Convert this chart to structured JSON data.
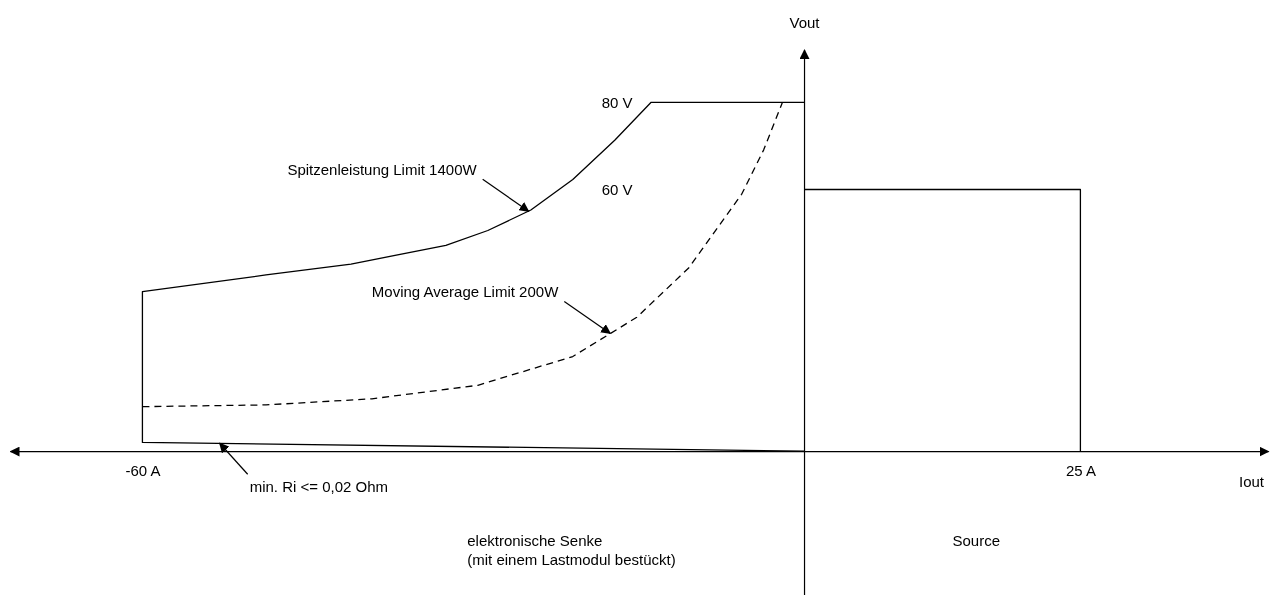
{
  "chart_data": {
    "type": "line",
    "xlabel": "Iout",
    "ylabel": "Vout",
    "xlim": [
      -72,
      42
    ],
    "ylim": [
      -33,
      92
    ],
    "xticks": [
      {
        "value": -60,
        "label": "-60 A"
      },
      {
        "value": 25,
        "label": "25 A"
      }
    ],
    "yticks": [
      {
        "value": 60,
        "label": "60 V"
      },
      {
        "value": 80,
        "label": "80 V"
      }
    ],
    "grid": false,
    "series": [
      {
        "color": "#000000",
        "line_style": "solid",
        "x": [
          0,
          -60,
          -60,
          -48.8,
          -41.1,
          -32.5,
          -28.7,
          -24.8,
          -21,
          -17.2,
          -13.9,
          0
        ],
        "values": [
          0,
          2,
          36.6,
          40.4,
          42.9,
          47.2,
          50.6,
          55.3,
          62.3,
          71.3,
          80,
          80
        ]
      },
      {
        "color": "#000000",
        "line_style": "dashed",
        "x": [
          -60,
          -48.8,
          -39.2,
          -29.6,
          -21,
          -15.2,
          -10.5,
          -5.7,
          -3.7,
          -2
        ],
        "values": [
          10.2,
          10.6,
          12,
          15.1,
          21.7,
          30.7,
          42,
          58.9,
          69.1,
          80
        ]
      },
      {
        "color": "#000000",
        "line_style": "solid",
        "x": [
          0,
          25,
          25
        ],
        "values": [
          60,
          60,
          0
        ]
      }
    ],
    "annotations": [
      {
        "text": "Spitzenleistung Limit 1400W",
        "x": -25,
        "y": 55
      },
      {
        "text": "Moving Average Limit 200W",
        "x": -17.6,
        "y": 27
      },
      {
        "text": "min. Ri <= 0,02 Ohm",
        "x": -53,
        "y": 1.8
      },
      "elektronische Senke\n(mit einem Lastmodul bestückt)",
      "Source"
    ]
  }
}
